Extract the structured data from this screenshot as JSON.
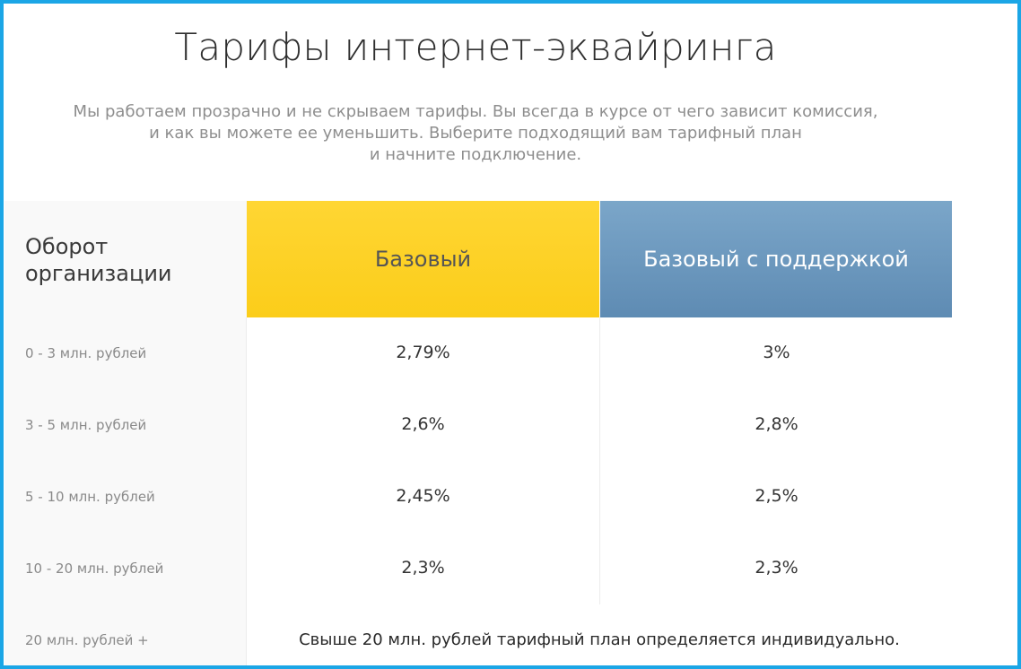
{
  "page": {
    "title": "Тарифы интернет-эквайринга",
    "subtitle_lines": [
      "Мы работаем прозрачно и не скрываем тарифы. Вы всегда в курсе от чего зависит комиссия,",
      "и как вы можете ее уменьшить. Выберите подходящий вам тарифный план",
      "и начните подключение."
    ]
  },
  "table": {
    "header_label_lines": [
      "Оборот",
      "организации"
    ],
    "plans": [
      {
        "name": "Базовый",
        "color": "#fbd21f"
      },
      {
        "name": "Базовый с поддержкой",
        "color": "#6e9bc2"
      }
    ],
    "rows": [
      {
        "range": "0 - 3 млн. рублей",
        "basic": "2,79%",
        "support": "3%"
      },
      {
        "range": "3 - 5 млн. рублей",
        "basic": "2,6%",
        "support": "2,8%"
      },
      {
        "range": "5 - 10 млн. рублей",
        "basic": "2,45%",
        "support": "2,5%"
      },
      {
        "range": "10 - 20 млн. рублей",
        "basic": "2,3%",
        "support": "2,3%"
      },
      {
        "range": "20 млн. рублей +",
        "note": "Свыше 20 млн. рублей тарифный план определяется индивидуально."
      }
    ]
  }
}
